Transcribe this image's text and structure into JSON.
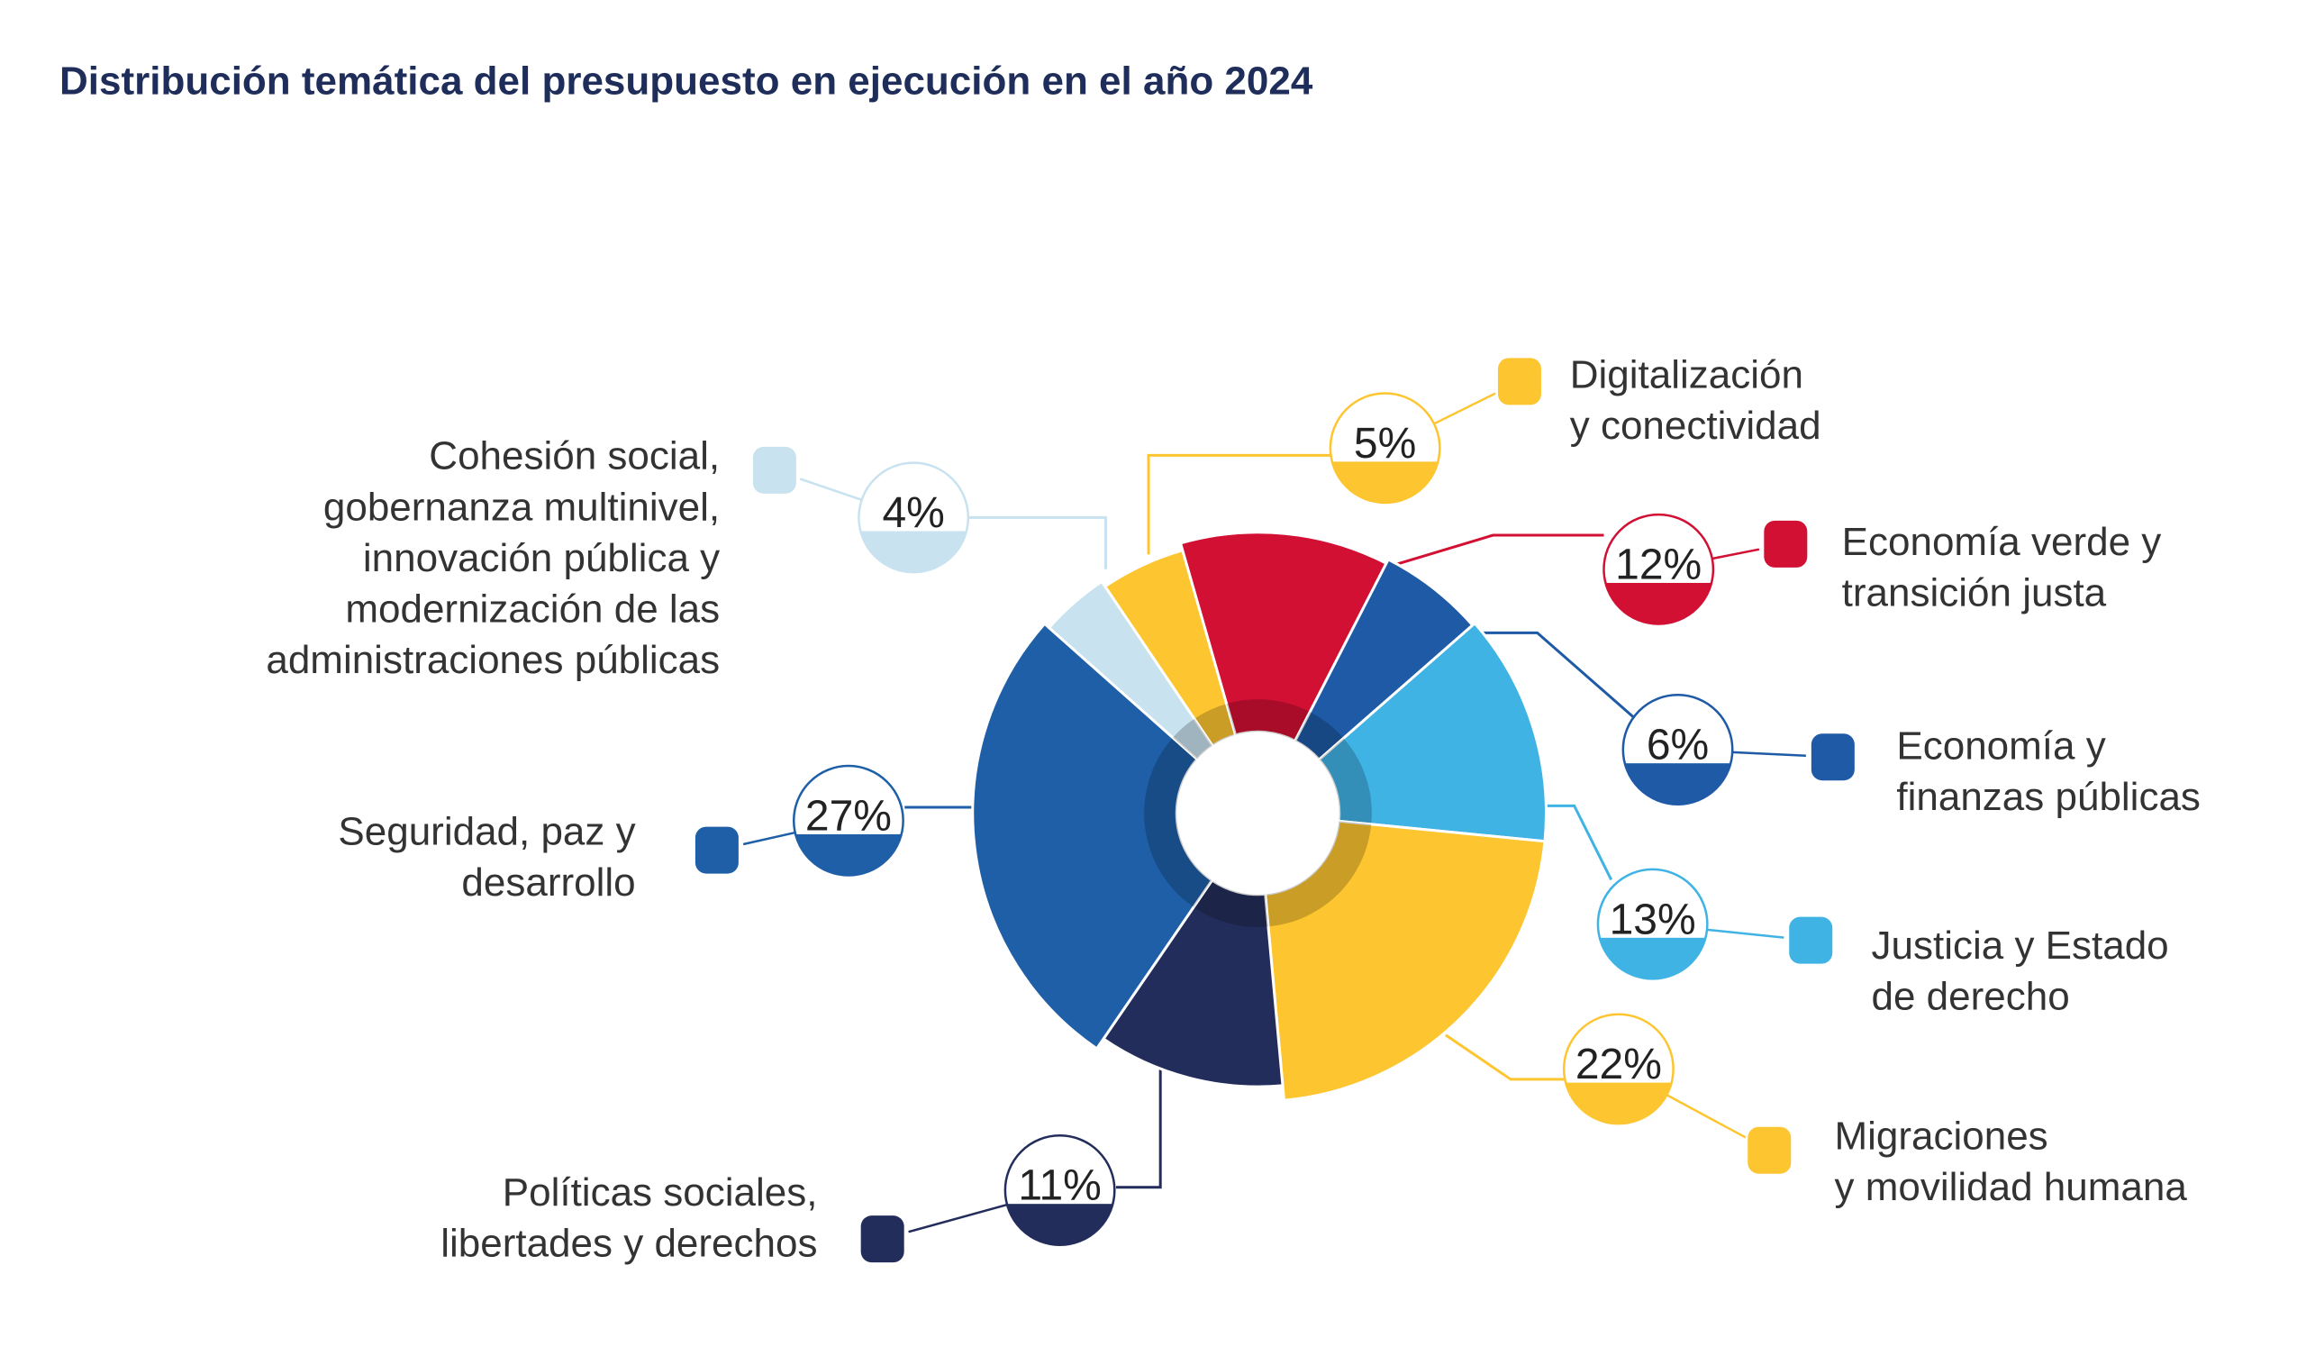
{
  "chart_data": {
    "type": "pie",
    "title": "Distribución temática del presupuesto en ejecución en el año 2024",
    "categories": [
      "Digitalización\ny conectividad",
      "Economía verde y\ntransición justa",
      "Economía y\nfinanzas públicas",
      "Justicia y Estado\nde derecho",
      "Migraciones\ny movilidad humana",
      "Políticas sociales,\nlibertades y derechos",
      "Seguridad, paz y\ndesarrollo",
      "Cohesión social,\ngobernanza multinivel,\ninnovación pública y\nmodernización de las\nadministraciones públicas"
    ],
    "values": [
      5,
      12,
      6,
      13,
      22,
      11,
      27,
      4
    ],
    "value_labels": [
      "5%",
      "12%",
      "6%",
      "13%",
      "22%",
      "11%",
      "27%",
      "4%"
    ],
    "colors": [
      "#fdc530",
      "#d21034",
      "#1f5aa6",
      "#40b3e5",
      "#fdc530",
      "#232d5b",
      "#1f5fa8",
      "#c8e2ef"
    ]
  }
}
